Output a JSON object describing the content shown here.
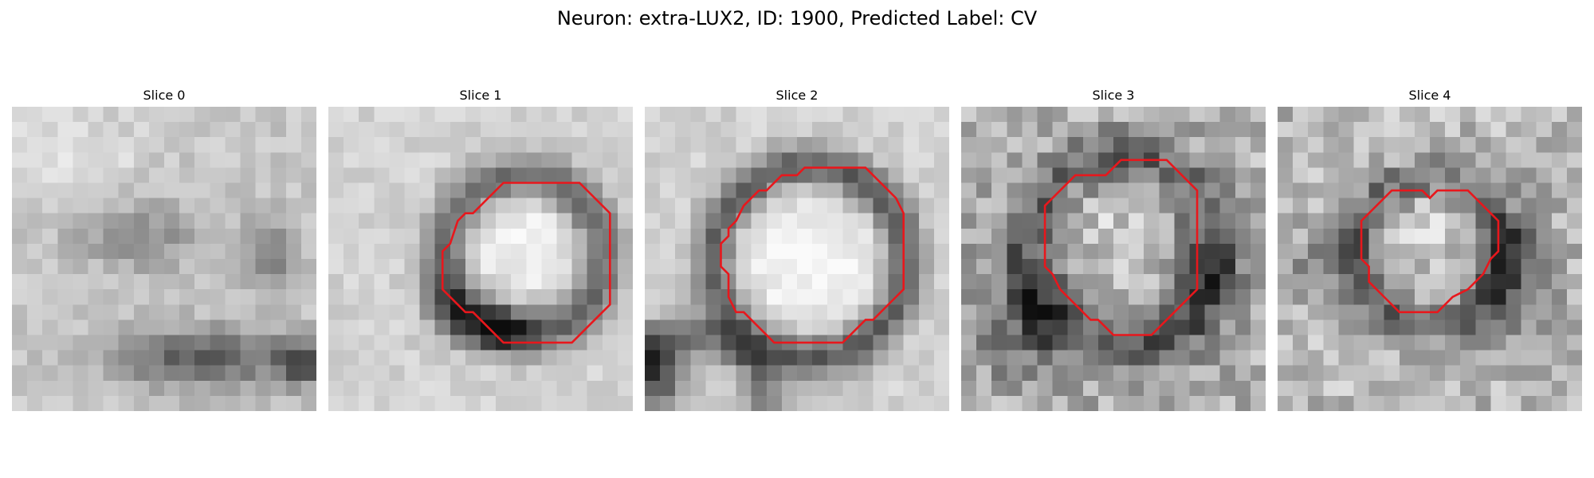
{
  "figure": {
    "title": "Neuron: extra-LUX2, ID: 1900, Predicted Label: CV"
  },
  "colors": {
    "background": "#ffffff",
    "contour": "#e8171c"
  },
  "slices": [
    {
      "title": "Slice 0",
      "image": "grayscale-em-patch-with-dark-band",
      "contour": null
    },
    {
      "title": "Slice 1",
      "image": "grayscale-em-patch-with-round-vesicle",
      "contour": [
        [
          11.5,
          5.0
        ],
        [
          16.5,
          5.0
        ],
        [
          18.5,
          7.0
        ],
        [
          18.5,
          13.0
        ],
        [
          17.0,
          14.5
        ],
        [
          16.0,
          15.5
        ],
        [
          11.5,
          15.5
        ],
        [
          10.5,
          14.5
        ],
        [
          9.5,
          13.5
        ],
        [
          9.0,
          13.5
        ],
        [
          7.5,
          12.0
        ],
        [
          7.5,
          9.5
        ],
        [
          8.0,
          9.0
        ],
        [
          8.5,
          7.5
        ],
        [
          9.0,
          7.0
        ],
        [
          9.5,
          7.0
        ]
      ]
    },
    {
      "title": "Slice 2",
      "image": "grayscale-em-patch-with-large-vesicle",
      "contour": [
        [
          10.5,
          4.0
        ],
        [
          14.5,
          4.0
        ],
        [
          16.5,
          6.0
        ],
        [
          17.0,
          7.0
        ],
        [
          17.0,
          12.0
        ],
        [
          16.5,
          12.5
        ],
        [
          15.0,
          14.0
        ],
        [
          14.5,
          14.0
        ],
        [
          13.0,
          15.5
        ],
        [
          8.5,
          15.5
        ],
        [
          7.0,
          14.0
        ],
        [
          6.5,
          13.5
        ],
        [
          6.0,
          13.5
        ],
        [
          5.5,
          12.5
        ],
        [
          5.5,
          11.0
        ],
        [
          5.0,
          10.5
        ],
        [
          5.0,
          9.0
        ],
        [
          5.5,
          8.5
        ],
        [
          5.5,
          8.0
        ],
        [
          6.0,
          7.5
        ],
        [
          6.5,
          6.5
        ],
        [
          7.5,
          5.5
        ],
        [
          8.0,
          5.5
        ],
        [
          9.0,
          4.5
        ],
        [
          10.0,
          4.5
        ]
      ]
    },
    {
      "title": "Slice 3",
      "image": "grayscale-noisy-em-patch-with-vesicle",
      "contour": [
        [
          10.5,
          3.5
        ],
        [
          13.5,
          3.5
        ],
        [
          15.5,
          5.5
        ],
        [
          15.5,
          12.0
        ],
        [
          15.0,
          12.5
        ],
        [
          14.5,
          13.0
        ],
        [
          12.5,
          15.0
        ],
        [
          10.0,
          15.0
        ],
        [
          9.0,
          14.0
        ],
        [
          8.5,
          14.0
        ],
        [
          6.5,
          12.0
        ],
        [
          6.0,
          11.0
        ],
        [
          5.5,
          10.5
        ],
        [
          5.5,
          6.5
        ],
        [
          7.5,
          4.5
        ],
        [
          9.5,
          4.5
        ]
      ]
    },
    {
      "title": "Slice 4",
      "image": "grayscale-noisy-em-patch-with-small-vesicle",
      "contour": [
        [
          7.5,
          5.5
        ],
        [
          9.5,
          5.5
        ],
        [
          10.0,
          6.0
        ],
        [
          10.5,
          5.5
        ],
        [
          12.5,
          5.5
        ],
        [
          14.5,
          7.5
        ],
        [
          14.5,
          9.5
        ],
        [
          14.0,
          10.0
        ],
        [
          13.5,
          11.0
        ],
        [
          13.0,
          11.5
        ],
        [
          12.5,
          12.0
        ],
        [
          11.5,
          12.5
        ],
        [
          11.0,
          13.0
        ],
        [
          10.5,
          13.5
        ],
        [
          8.0,
          13.5
        ],
        [
          7.0,
          12.5
        ],
        [
          6.5,
          12.0
        ],
        [
          6.0,
          11.5
        ],
        [
          6.0,
          10.5
        ],
        [
          5.5,
          10.0
        ],
        [
          5.5,
          8.5
        ],
        [
          5.5,
          7.5
        ]
      ]
    }
  ]
}
